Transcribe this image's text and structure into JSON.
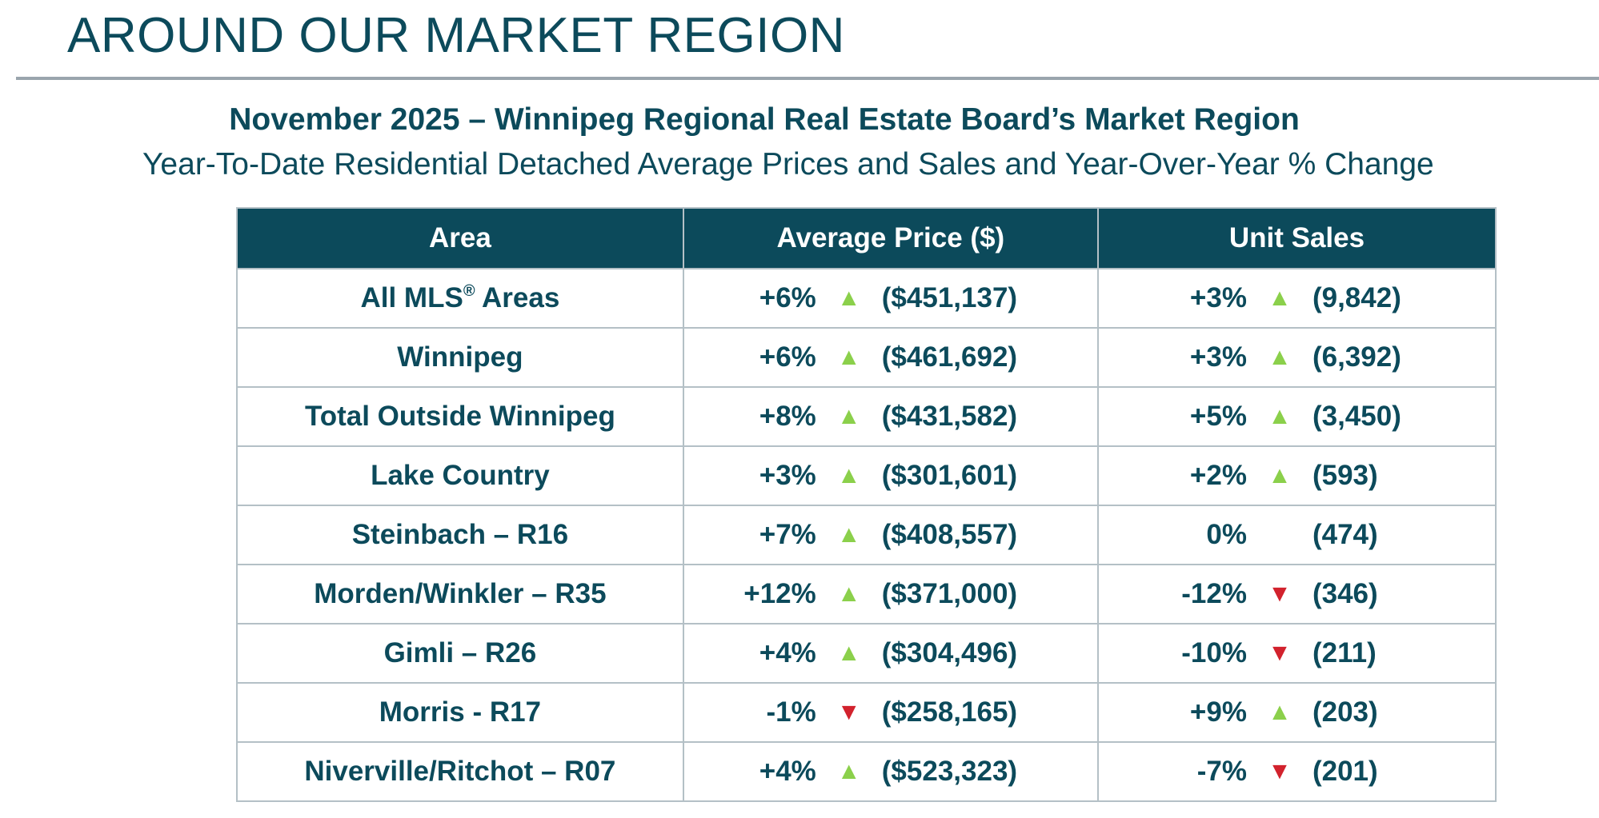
{
  "page": {
    "title": "AROUND OUR MARKET REGION",
    "heading": "November 2025 – Winnipeg Regional Real Estate Board’s Market Region",
    "subheading": "Year-To-Date Residential Detached Average Prices and Sales and Year-Over-Year % Change"
  },
  "colors": {
    "primary": "#0c4a5b",
    "rule": "#9aa5ad",
    "up": "#8bd04b",
    "down": "#d2222d",
    "border": "#b4c0c6"
  },
  "table": {
    "headers": {
      "area": "Area",
      "price": "Average Price ($)",
      "sales": "Unit Sales"
    },
    "rows": [
      {
        "area": "All MLS",
        "area_sup": "®",
        "area_suffix": " Areas",
        "price_pct": "+6%",
        "price_dir": "up",
        "price_val": "($451,137)",
        "sales_pct": "+3%",
        "sales_dir": "up",
        "sales_val": "(9,842)"
      },
      {
        "area": "Winnipeg",
        "price_pct": "+6%",
        "price_dir": "up",
        "price_val": "($461,692)",
        "sales_pct": "+3%",
        "sales_dir": "up",
        "sales_val": "(6,392)"
      },
      {
        "area": "Total Outside Winnipeg",
        "price_pct": "+8%",
        "price_dir": "up",
        "price_val": "($431,582)",
        "sales_pct": "+5%",
        "sales_dir": "up",
        "sales_val": "(3,450)"
      },
      {
        "area": "Lake Country",
        "price_pct": "+3%",
        "price_dir": "up",
        "price_val": "($301,601)",
        "sales_pct": "+2%",
        "sales_dir": "up",
        "sales_val": "(593)"
      },
      {
        "area": "Steinbach – R16",
        "price_pct": "+7%",
        "price_dir": "up",
        "price_val": "($408,557)",
        "sales_pct": "0%",
        "sales_dir": "none",
        "sales_val": "(474)"
      },
      {
        "area": "Morden/Winkler – R35",
        "price_pct": "+12%",
        "price_dir": "up",
        "price_val": "($371,000)",
        "sales_pct": "-12%",
        "sales_dir": "down",
        "sales_val": "(346)"
      },
      {
        "area": "Gimli – R26",
        "price_pct": "+4%",
        "price_dir": "up",
        "price_val": "($304,496)",
        "sales_pct": "-10%",
        "sales_dir": "down",
        "sales_val": "(211)"
      },
      {
        "area": "Morris - R17",
        "price_pct": "-1%",
        "price_dir": "down",
        "price_val": "($258,165)",
        "sales_pct": "+9%",
        "sales_dir": "up",
        "sales_val": "(203)"
      },
      {
        "area": "Niverville/Ritchot – R07",
        "price_pct": "+4%",
        "price_dir": "up",
        "price_val": "($523,323)",
        "sales_pct": "-7%",
        "sales_dir": "down",
        "sales_val": "(201)"
      }
    ]
  }
}
